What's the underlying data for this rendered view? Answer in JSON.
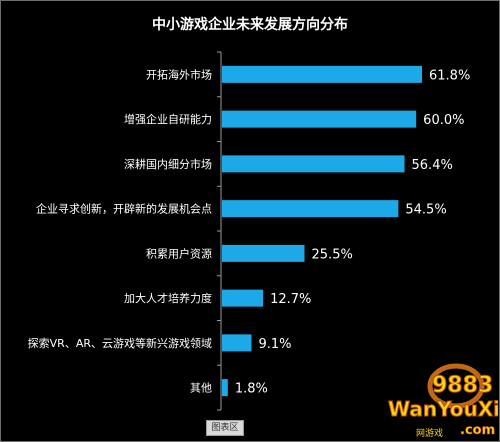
{
  "chart_data": {
    "type": "bar",
    "orientation": "horizontal",
    "title": "中小游戏企业未来发展方向分布",
    "categories": [
      "开拓海外市场",
      "增强企业自研能力",
      "深耕国内细分市场",
      "企业寻求创新，开辟新的发展机会点",
      "积累用户资源",
      "加大人才培养力度",
      "探索VR、AR、云游戏等新兴游戏领域",
      "其他"
    ],
    "values": [
      61.8,
      60.0,
      56.4,
      54.5,
      25.5,
      12.7,
      9.1,
      1.8
    ],
    "value_labels": [
      "61.8%",
      "60.0%",
      "56.4%",
      "54.5%",
      "25.5%",
      "12.7%",
      "9.1%",
      "1.8%"
    ],
    "bar_color": "#1da8e8",
    "background": "#000000",
    "text_color": "#ffffff",
    "axis_color": "#9a9a9a",
    "grid": false,
    "legend": "none"
  },
  "footer": {
    "tab_label": "图表区"
  },
  "watermark": {
    "brand": "WanYouXi",
    "text": "9883",
    "subtext": ".com",
    "tagline": "网游戏"
  }
}
